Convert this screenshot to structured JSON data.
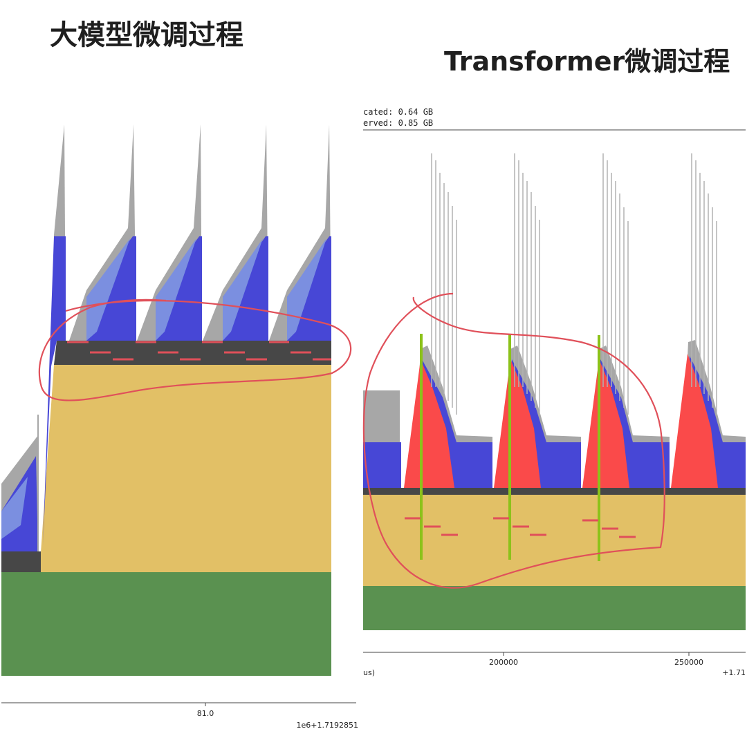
{
  "titles": {
    "left": "大模型微调过程",
    "right": "Transformer微调过程"
  },
  "left_axis": {
    "tick_label": "81.0",
    "offset_label": "1e6+1.7192851"
  },
  "right_axis": {
    "tick_labels": [
      "200000",
      "250000"
    ],
    "unit_fragment": "us)",
    "offset_label": "+1.71",
    "legend_lines": [
      "cated: 0.64 GB",
      "erved: 0.85 GB"
    ]
  },
  "colors": {
    "green": "#5a9150",
    "tan": "#e2c066",
    "dark": "#474747",
    "blue": "#4747d6",
    "light_blue": "#7b8fe0",
    "gray": "#a7a7a7",
    "red": "#fa4a4a",
    "annotation_red": "#e0505a",
    "marker_green": "#8cc21a"
  },
  "chart_data": [
    {
      "type": "area",
      "title": "大模型微调过程",
      "layers_bottom_to_top": [
        "green",
        "tan",
        "dark",
        "blue",
        "light_blue",
        "gray"
      ],
      "x_ticks": [
        "81.0"
      ],
      "x_offset": "1e6+1.7192851",
      "spike_count": 5
    },
    {
      "type": "area",
      "title": "Transformer微调过程",
      "layers_bottom_to_top": [
        "green",
        "tan",
        "dark",
        "blue",
        "red",
        "gray"
      ],
      "x_ticks": [
        200000,
        250000
      ],
      "x_offset": "+1.71",
      "legend": [
        "cated: 0.64 GB",
        "erved: 0.85 GB"
      ],
      "spike_count": 4,
      "marker_count": 3
    }
  ]
}
